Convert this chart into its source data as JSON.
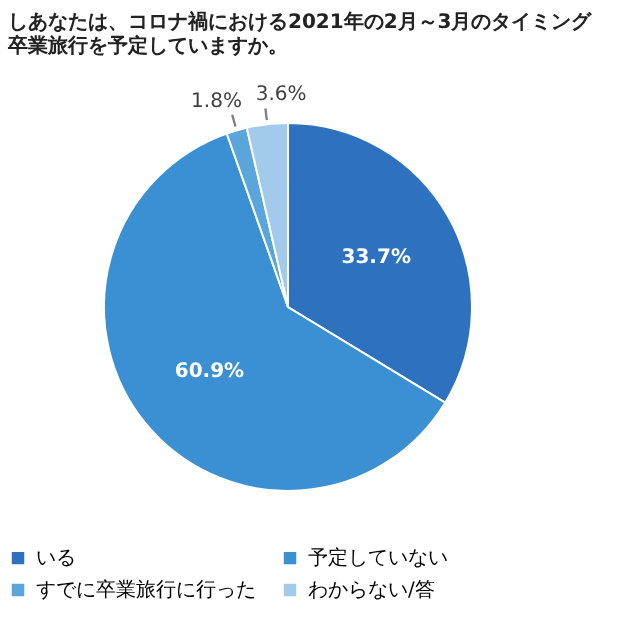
{
  "chart_data": {
    "type": "pie",
    "title": [
      "しあなたは、コロナ禍における2021年の2月～3月のタイミング",
      "卒業旅行を予定していますか。"
    ],
    "categories": [
      "いる",
      "予定していない",
      "すでに卒業旅行に行った",
      "わからない/答"
    ],
    "values": [
      33.7,
      60.9,
      1.8,
      3.6
    ],
    "colors": [
      "#2e72bf",
      "#3a90d2",
      "#5aa5dc",
      "#a2cbeb"
    ],
    "value_labels": [
      "33.7%",
      "60.9%",
      "1.8%",
      "3.6%"
    ],
    "legend": "bottom"
  }
}
